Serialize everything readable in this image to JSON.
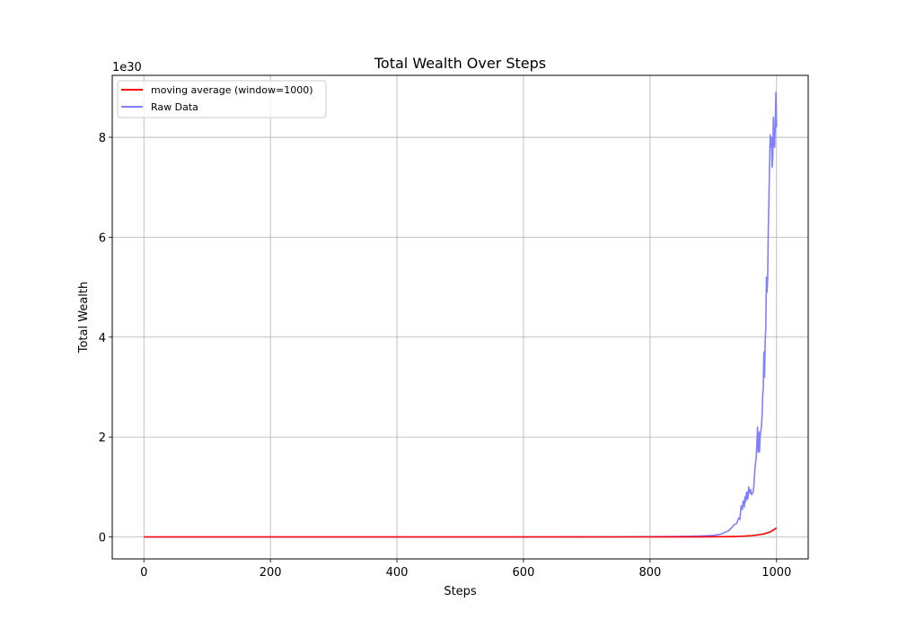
{
  "chart_data": {
    "type": "line",
    "title": "Total Wealth Over Steps",
    "xlabel": "Steps",
    "ylabel": "Total Wealth",
    "y_offset_label": "1e30",
    "y_scale": 1e+30,
    "xlim": [
      -50,
      1050
    ],
    "ylim": [
      -0.44,
      9.24
    ],
    "x_ticks": [
      0,
      200,
      400,
      600,
      800,
      1000
    ],
    "y_ticks": [
      0,
      2,
      4,
      6,
      8
    ],
    "grid": true,
    "legend_position": "top-left",
    "series": [
      {
        "name": "moving average (window=1000)",
        "color": "#ff0000",
        "x": [
          0,
          100,
          200,
          300,
          400,
          500,
          600,
          700,
          800,
          850,
          880,
          900,
          920,
          940,
          950,
          960,
          970,
          980,
          990,
          1000
        ],
        "y": [
          0,
          0,
          0,
          0,
          0,
          0,
          0,
          0,
          0,
          0.001,
          0.002,
          0.003,
          0.006,
          0.012,
          0.018,
          0.027,
          0.04,
          0.06,
          0.1,
          0.18
        ]
      },
      {
        "name": "Raw Data",
        "color": "#7f7fff",
        "x": [
          0,
          200,
          400,
          600,
          800,
          850,
          880,
          900,
          910,
          915,
          920,
          925,
          930,
          933,
          936,
          938,
          940,
          942,
          944,
          946,
          947,
          948,
          949,
          950,
          951,
          952,
          953,
          954,
          955,
          956,
          957,
          958,
          959,
          960,
          961,
          962,
          963,
          964,
          965,
          966,
          967,
          968,
          969,
          970,
          971,
          972,
          973,
          974,
          975,
          976,
          977,
          978,
          979,
          980,
          981,
          982,
          983,
          984,
          985,
          986,
          987,
          988,
          989,
          990,
          991,
          992,
          993,
          994,
          995,
          996,
          997,
          998,
          999,
          1000
        ],
        "y": [
          0,
          0,
          0,
          0,
          0.005,
          0.01,
          0.02,
          0.03,
          0.05,
          0.07,
          0.1,
          0.13,
          0.2,
          0.25,
          0.26,
          0.3,
          0.38,
          0.35,
          0.62,
          0.55,
          0.7,
          0.72,
          0.6,
          0.8,
          0.7,
          0.85,
          0.9,
          0.75,
          0.8,
          1.0,
          0.92,
          0.88,
          0.95,
          0.86,
          0.85,
          0.88,
          0.9,
          1.0,
          1.2,
          1.4,
          1.5,
          1.6,
          1.9,
          2.2,
          1.7,
          2.1,
          1.7,
          2.0,
          2.1,
          2.2,
          2.4,
          2.8,
          3.0,
          3.7,
          3.2,
          3.9,
          4.2,
          5.2,
          4.9,
          5.2,
          6.2,
          6.8,
          7.5,
          8.05,
          7.8,
          8.0,
          7.4,
          7.6,
          8.4,
          7.9,
          7.8,
          8.3,
          8.9,
          8.2
        ]
      }
    ]
  }
}
